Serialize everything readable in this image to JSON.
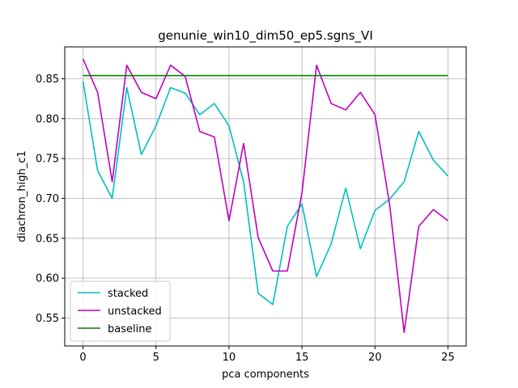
{
  "chart_data": {
    "type": "line",
    "title": "genunie_win10_dim50_ep5.sgns_VI",
    "xlabel": "pca components",
    "ylabel": "diachron_high_c1",
    "xlim": [
      -1.25,
      26.25
    ],
    "ylim": [
      0.515,
      0.89
    ],
    "xticks": [
      0,
      5,
      10,
      15,
      20,
      25
    ],
    "yticks": [
      0.55,
      0.6,
      0.65,
      0.7,
      0.75,
      0.8,
      0.85
    ],
    "ytick_labels": [
      "0.55",
      "0.60",
      "0.65",
      "0.70",
      "0.75",
      "0.80",
      "0.85"
    ],
    "grid": true,
    "legend_position": "lower-left",
    "x": [
      0,
      1,
      2,
      3,
      4,
      5,
      6,
      7,
      8,
      9,
      10,
      11,
      12,
      13,
      14,
      15,
      16,
      17,
      18,
      19,
      20,
      21,
      22,
      23,
      24,
      25
    ],
    "series": [
      {
        "name": "stacked",
        "color": "#00bfbf",
        "values": [
          0.847,
          0.735,
          0.7,
          0.839,
          0.755,
          0.791,
          0.839,
          0.832,
          0.805,
          0.819,
          0.791,
          0.721,
          0.581,
          0.567,
          0.665,
          0.693,
          0.602,
          0.643,
          0.713,
          0.637,
          0.685,
          0.699,
          0.721,
          0.784,
          0.748,
          0.728
        ]
      },
      {
        "name": "unstacked",
        "color": "#bf00bf",
        "values": [
          0.875,
          0.833,
          0.721,
          0.867,
          0.833,
          0.825,
          0.867,
          0.853,
          0.784,
          0.777,
          0.672,
          0.769,
          0.651,
          0.609,
          0.609,
          0.707,
          0.867,
          0.819,
          0.811,
          0.833,
          0.805,
          0.693,
          0.532,
          0.665,
          0.686,
          0.672
        ]
      },
      {
        "name": "baseline",
        "color": "#008000",
        "values": [
          0.854,
          0.854,
          0.854,
          0.854,
          0.854,
          0.854,
          0.854,
          0.854,
          0.854,
          0.854,
          0.854,
          0.854,
          0.854,
          0.854,
          0.854,
          0.854,
          0.854,
          0.854,
          0.854,
          0.854,
          0.854,
          0.854,
          0.854,
          0.854,
          0.854,
          0.854
        ]
      }
    ]
  }
}
